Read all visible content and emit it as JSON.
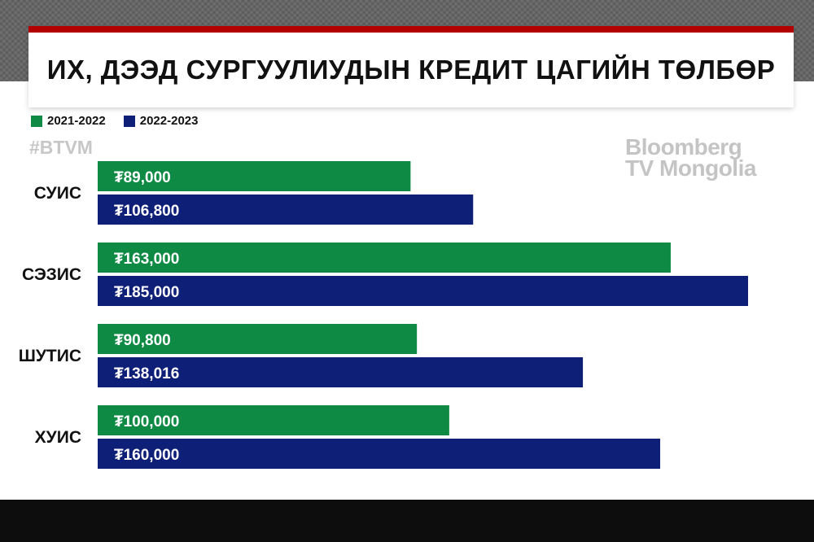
{
  "title": "ИХ, ДЭЭД СУРГУУЛИУДЫН КРЕДИТ ЦАГИЙН ТӨЛБӨР",
  "hashtag": "#BTVM",
  "logo": {
    "line1": "Bloomberg",
    "line2": "TV Mongolia"
  },
  "colors": {
    "accent_red": "#b30000",
    "series_2021": "#0f8a45",
    "series_2022": "#0e1f78"
  },
  "chart_data": {
    "type": "bar",
    "orientation": "horizontal",
    "categories": [
      "СУИС",
      "СЭЗИС",
      "ШУТИС",
      "ХУИС"
    ],
    "series": [
      {
        "name": "2021-2022",
        "values": [
          89000,
          163000,
          90800,
          100000
        ],
        "labels": [
          "₮89,000",
          "₮163,000",
          "₮90,800",
          "₮100,000"
        ]
      },
      {
        "name": "2022-2023",
        "values": [
          106800,
          185000,
          138016,
          160000
        ],
        "labels": [
          "₮106,800",
          "₮185,000",
          "₮138,016",
          "₮160,000"
        ]
      }
    ],
    "legend": "top-left",
    "grid": false
  }
}
